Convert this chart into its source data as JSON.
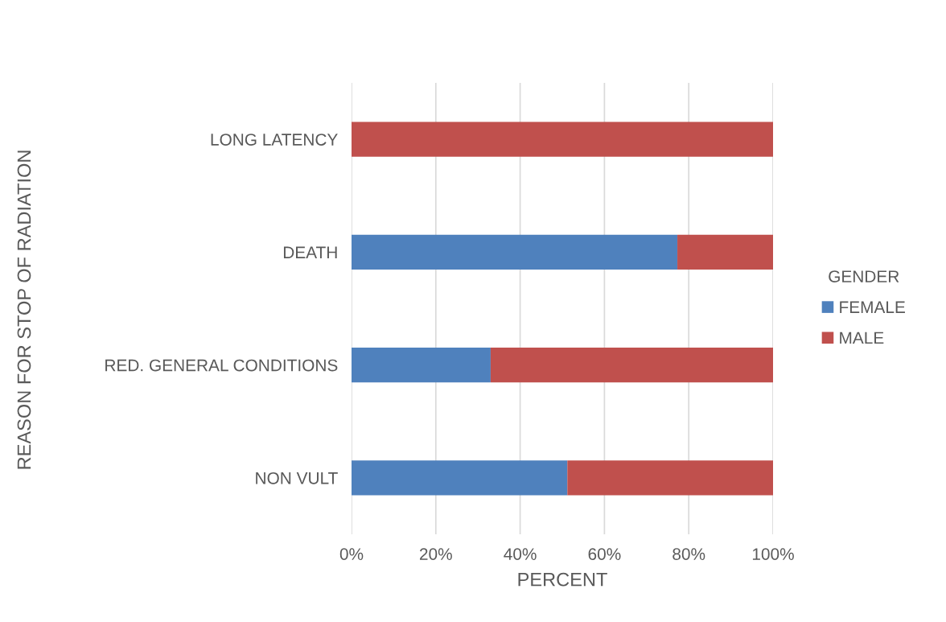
{
  "chart_data": {
    "type": "bar",
    "orientation": "horizontal",
    "stacked": true,
    "xlabel": "PERCENT",
    "ylabel": "REASON FOR STOP OF RADIATION",
    "legend_title": "GENDER",
    "legend": "right",
    "grid": "x",
    "categories": [
      "LONG LATENCY",
      "DEATH",
      "RED. GENERAL CONDITIONS",
      "NON VULT"
    ],
    "series": [
      {
        "name": "FEMALE",
        "color": "#4f81bd",
        "values": [
          0,
          77.3,
          33,
          51.2
        ]
      },
      {
        "name": "MALE",
        "color": "#c0504d",
        "values": [
          100,
          22.7,
          67,
          48.8
        ]
      }
    ],
    "xlim": [
      0,
      100
    ],
    "xticks": [
      {
        "value": 0,
        "label": "0%"
      },
      {
        "value": 20,
        "label": "20%"
      },
      {
        "value": 40,
        "label": "40%"
      },
      {
        "value": 60,
        "label": "60%"
      },
      {
        "value": 80,
        "label": "80%"
      },
      {
        "value": 100,
        "label": "100%"
      }
    ]
  }
}
